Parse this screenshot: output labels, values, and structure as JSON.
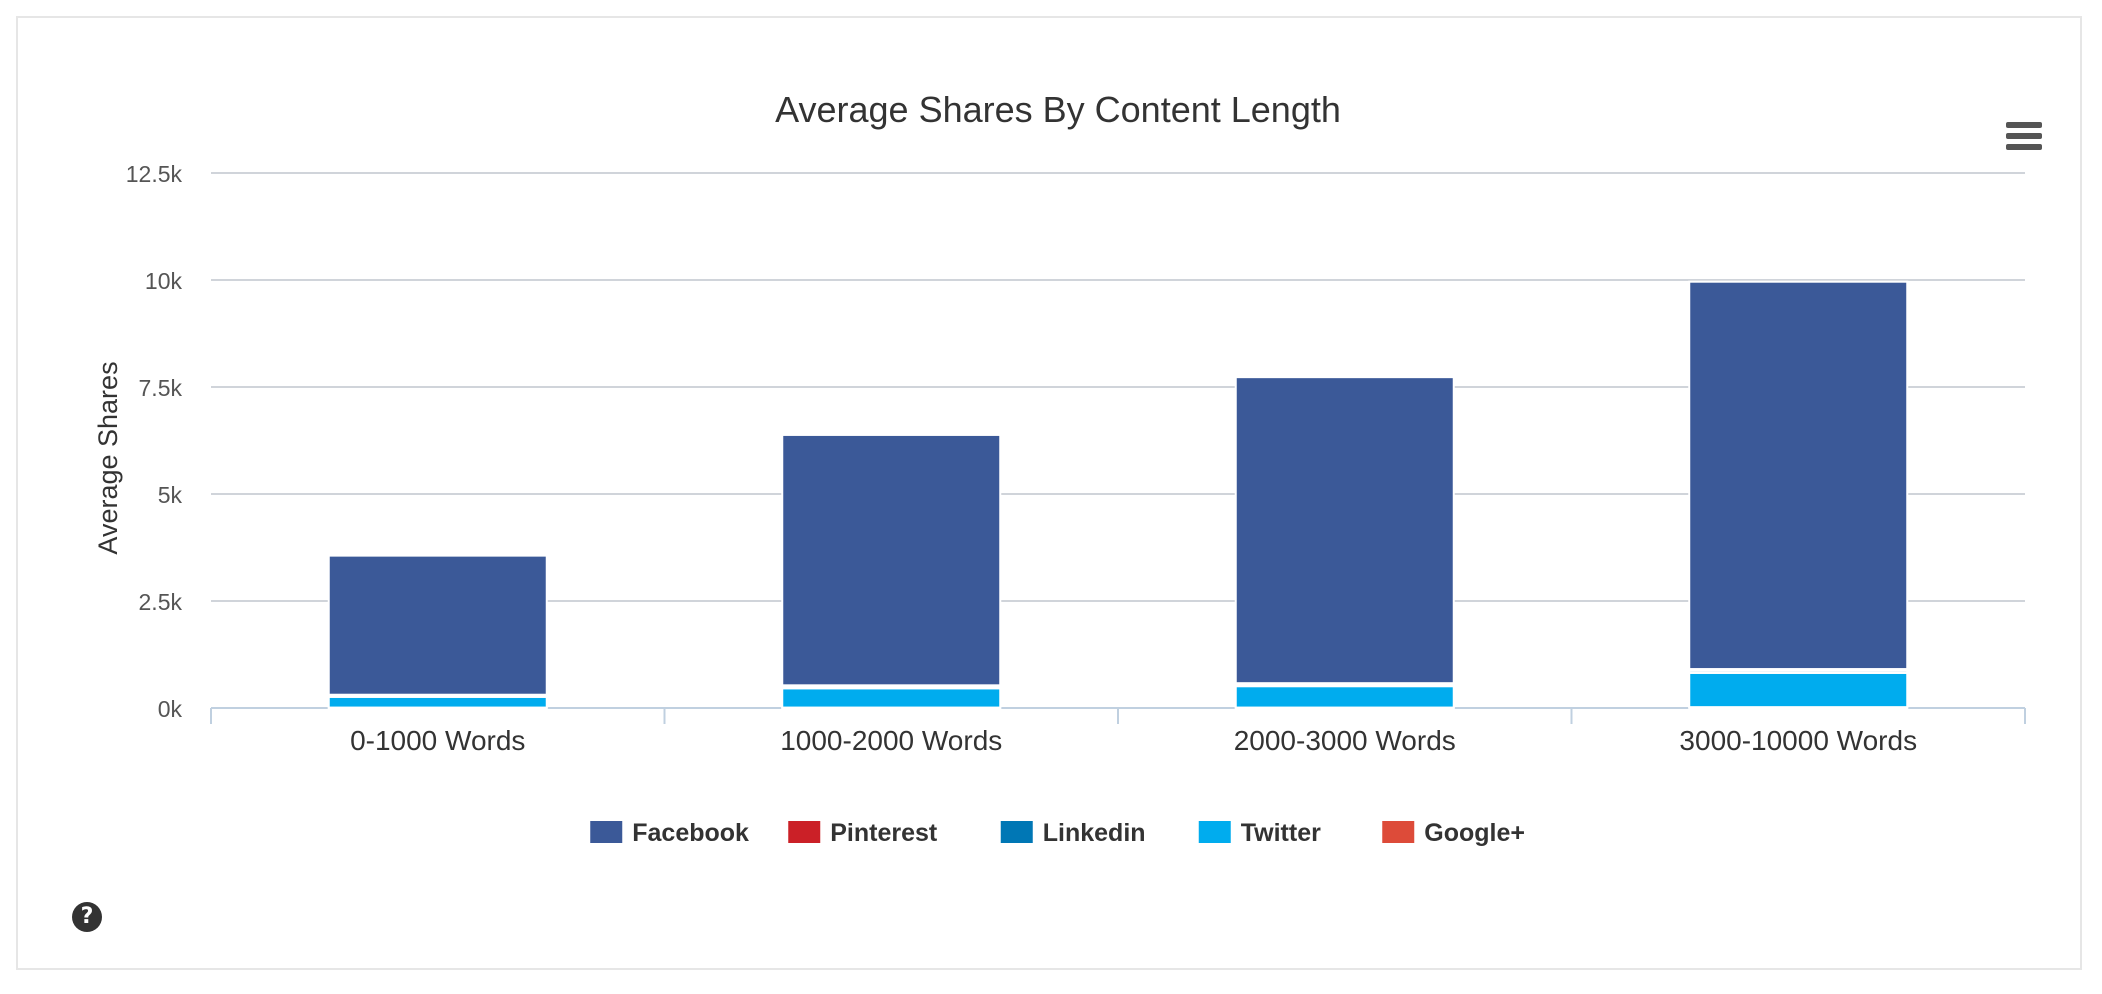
{
  "chart_data": {
    "type": "bar",
    "stacked": true,
    "title": "Average Shares By Content Length",
    "xlabel": "",
    "ylabel": "Average Shares",
    "categories": [
      "0-1000 Words",
      "1000-2000 Words",
      "2000-3000 Words",
      "3000-10000 Words"
    ],
    "ylim": [
      0,
      12500
    ],
    "yticks": [
      "0k",
      "2.5k",
      "5k",
      "7.5k",
      "10k",
      "12.5k"
    ],
    "grid": true,
    "legend_position": "bottom",
    "series": [
      {
        "name": "Facebook",
        "color": "#3b5998",
        "values": [
          3250,
          5850,
          7150,
          9050
        ]
      },
      {
        "name": "Pinterest",
        "color": "#cb2027",
        "values": [
          20,
          30,
          30,
          40
        ]
      },
      {
        "name": "Linkedin",
        "color": "#0077b5",
        "values": [
          30,
          40,
          40,
          50
        ]
      },
      {
        "name": "Twitter",
        "color": "#00acee",
        "values": [
          250,
          450,
          500,
          800
        ]
      },
      {
        "name": "Google+",
        "color": "#dd4b39",
        "values": [
          10,
          10,
          10,
          20
        ]
      }
    ]
  },
  "icons": {
    "menu": "hamburger-menu-icon",
    "help": "question-circle-icon"
  }
}
